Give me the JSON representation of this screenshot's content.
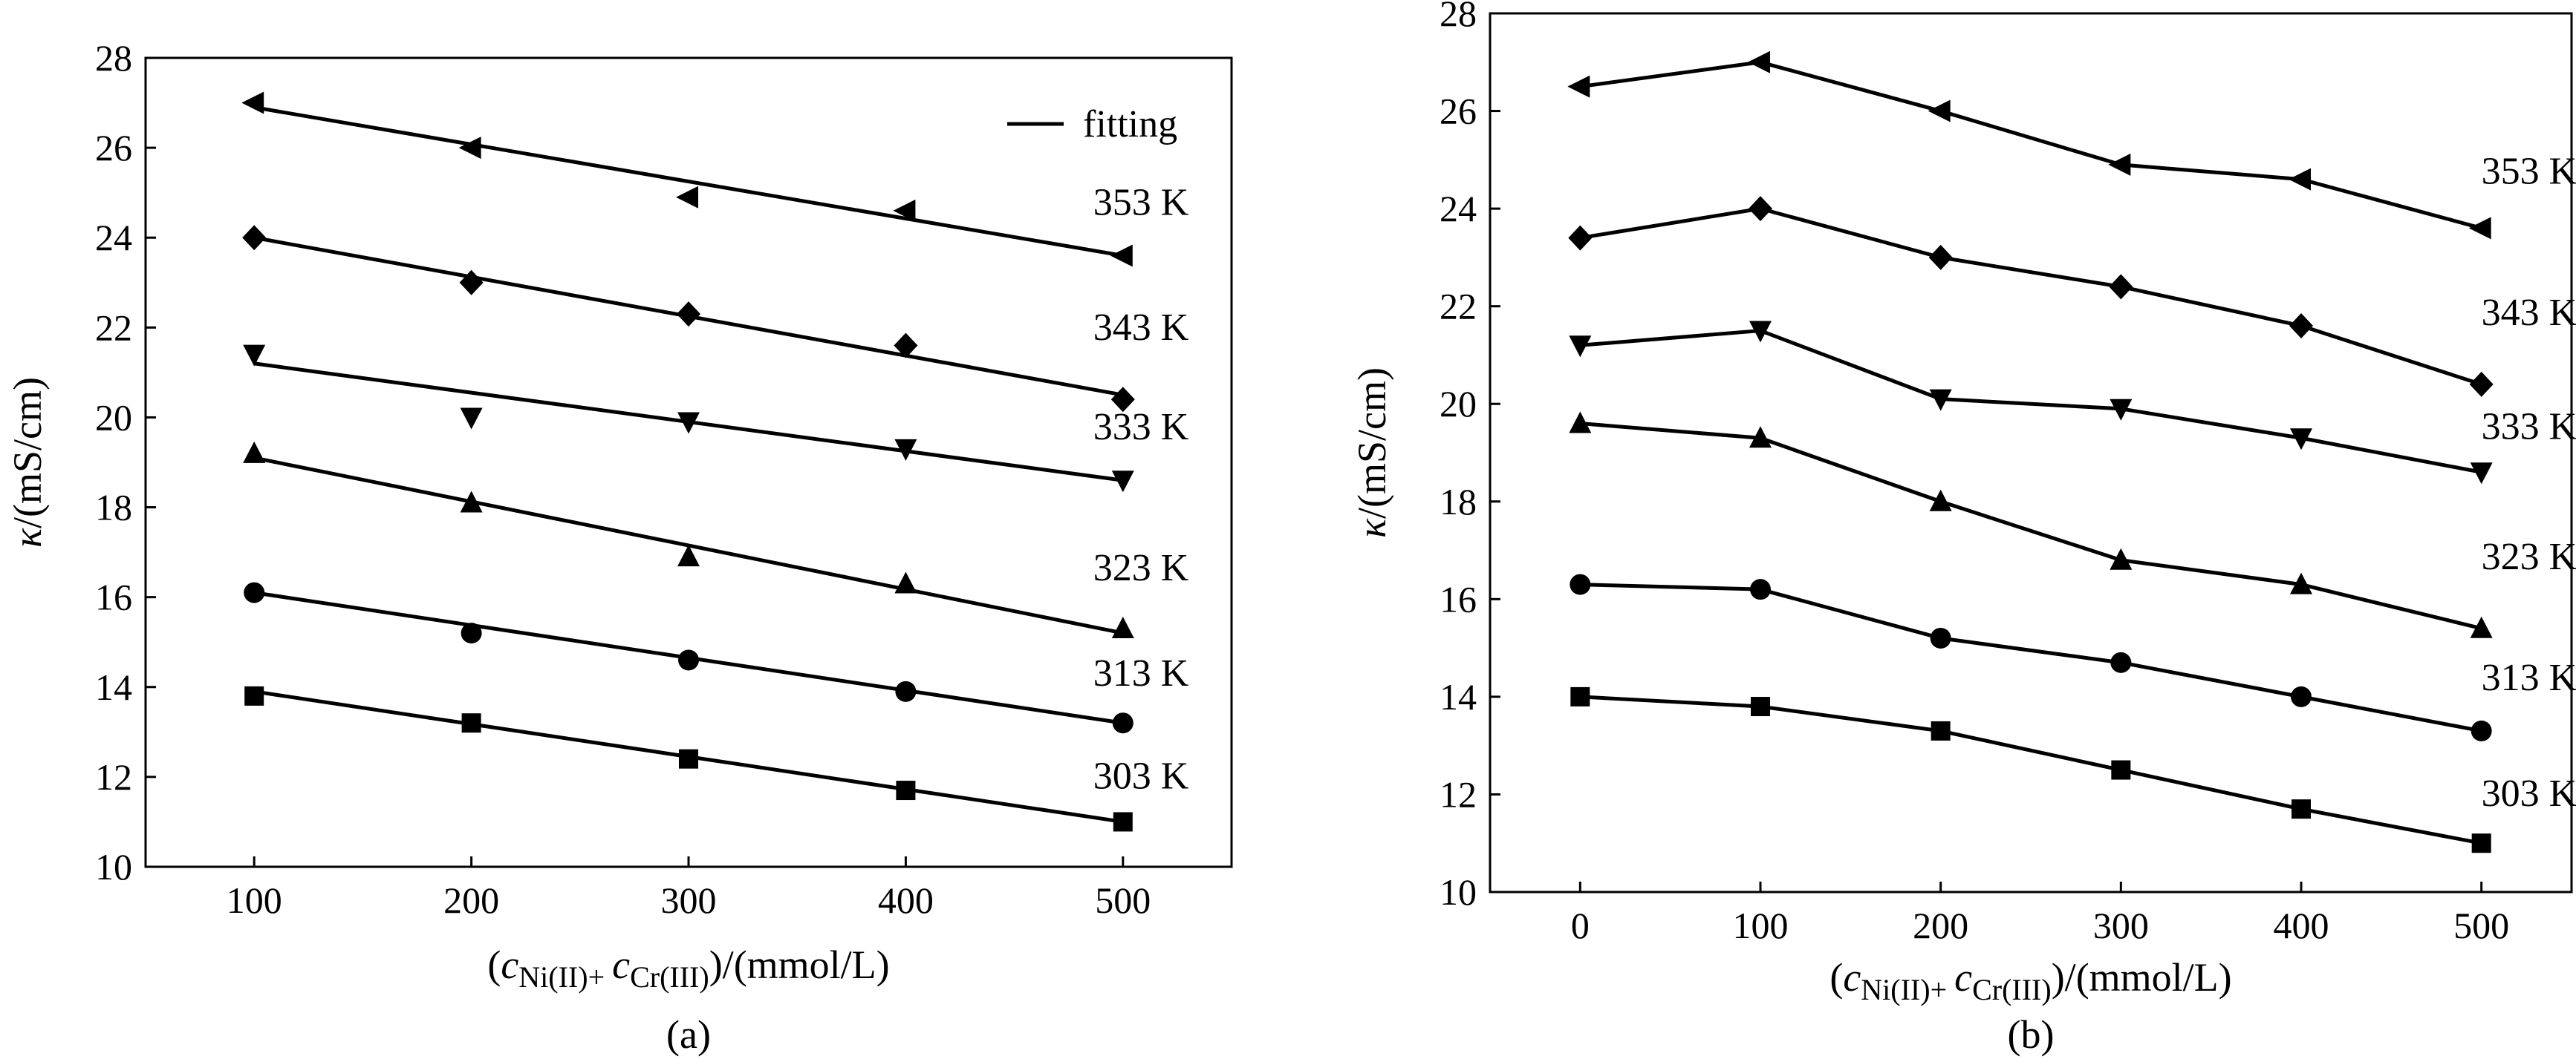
{
  "chart_data": [
    {
      "panel": "a",
      "type": "line",
      "panel_label": "(a)",
      "ylabel": "κ/(mS/cm)",
      "xlabel": {
        "prefix": "(",
        "c1": "c",
        "sub1": "Ni(II)+",
        "c2": "c",
        "sub2": "Cr(III)",
        "suffix": ")/(mmol/L)"
      },
      "xlim": [
        50,
        550
      ],
      "ylim": [
        10,
        28
      ],
      "xticks": [
        100,
        200,
        300,
        400,
        500
      ],
      "yticks": [
        10,
        12,
        14,
        16,
        18,
        20,
        22,
        24,
        26,
        28
      ],
      "legend": {
        "label": "fitting",
        "position": "top-right"
      },
      "grid": false,
      "series": [
        {
          "name": "353 K",
          "marker": "triangle-left",
          "x": [
            100,
            200,
            300,
            400,
            500
          ],
          "y": [
            27.0,
            26.0,
            24.9,
            24.6,
            23.6
          ],
          "fit": [
            26.9,
            23.6
          ]
        },
        {
          "name": "343 K",
          "marker": "diamond",
          "x": [
            100,
            200,
            300,
            400,
            500
          ],
          "y": [
            24.0,
            23.0,
            22.3,
            21.6,
            20.4
          ],
          "fit": [
            24.0,
            20.5
          ]
        },
        {
          "name": "333 K",
          "marker": "triangle-down",
          "x": [
            100,
            200,
            300,
            400,
            500
          ],
          "y": [
            21.4,
            20.0,
            19.9,
            19.3,
            18.6
          ],
          "fit": [
            21.2,
            18.6
          ]
        },
        {
          "name": "323 K",
          "marker": "triangle-up",
          "x": [
            100,
            200,
            300,
            400,
            500
          ],
          "y": [
            19.2,
            18.1,
            16.9,
            16.3,
            15.3
          ],
          "fit": [
            19.1,
            15.2
          ]
        },
        {
          "name": "313 K",
          "marker": "circle",
          "x": [
            100,
            200,
            300,
            400,
            500
          ],
          "y": [
            16.1,
            15.2,
            14.6,
            13.9,
            13.2
          ],
          "fit": [
            16.1,
            13.2
          ]
        },
        {
          "name": "303 K",
          "marker": "square",
          "x": [
            100,
            200,
            300,
            400,
            500
          ],
          "y": [
            13.8,
            13.2,
            12.4,
            11.7,
            11.0
          ],
          "fit": [
            13.9,
            11.0
          ]
        }
      ]
    },
    {
      "panel": "b",
      "type": "line",
      "panel_label": "(b)",
      "ylabel": "κ/(mS/cm)",
      "xlabel": {
        "prefix": "(",
        "c1": "c",
        "sub1": "Ni(II)+",
        "c2": "c",
        "sub2": "Cr(III)",
        "suffix": ")/(mmol/L)"
      },
      "xlim": [
        -50,
        550
      ],
      "ylim": [
        10,
        28
      ],
      "xticks": [
        0,
        100,
        200,
        300,
        400,
        500
      ],
      "yticks": [
        10,
        12,
        14,
        16,
        18,
        20,
        22,
        24,
        26,
        28
      ],
      "grid": false,
      "series": [
        {
          "name": "353 K",
          "marker": "triangle-left",
          "x": [
            0,
            100,
            200,
            300,
            400,
            500
          ],
          "y": [
            26.5,
            27.0,
            26.0,
            24.9,
            24.6,
            23.6
          ]
        },
        {
          "name": "343 K",
          "marker": "diamond",
          "x": [
            0,
            100,
            200,
            300,
            400,
            500
          ],
          "y": [
            23.4,
            24.0,
            23.0,
            22.4,
            21.6,
            20.4
          ]
        },
        {
          "name": "333 K",
          "marker": "triangle-down",
          "x": [
            0,
            100,
            200,
            300,
            400,
            500
          ],
          "y": [
            21.2,
            21.5,
            20.1,
            19.9,
            19.3,
            18.6
          ]
        },
        {
          "name": "323 K",
          "marker": "triangle-up",
          "x": [
            0,
            100,
            200,
            300,
            400,
            500
          ],
          "y": [
            19.6,
            19.3,
            18.0,
            16.8,
            16.3,
            15.4
          ]
        },
        {
          "name": "313 K",
          "marker": "circle",
          "x": [
            0,
            100,
            200,
            300,
            400,
            500
          ],
          "y": [
            16.3,
            16.2,
            15.2,
            14.7,
            14.0,
            13.3
          ]
        },
        {
          "name": "303 K",
          "marker": "square",
          "x": [
            0,
            100,
            200,
            300,
            400,
            500
          ],
          "y": [
            14.0,
            13.8,
            13.3,
            12.5,
            11.7,
            11.0
          ]
        }
      ]
    }
  ]
}
